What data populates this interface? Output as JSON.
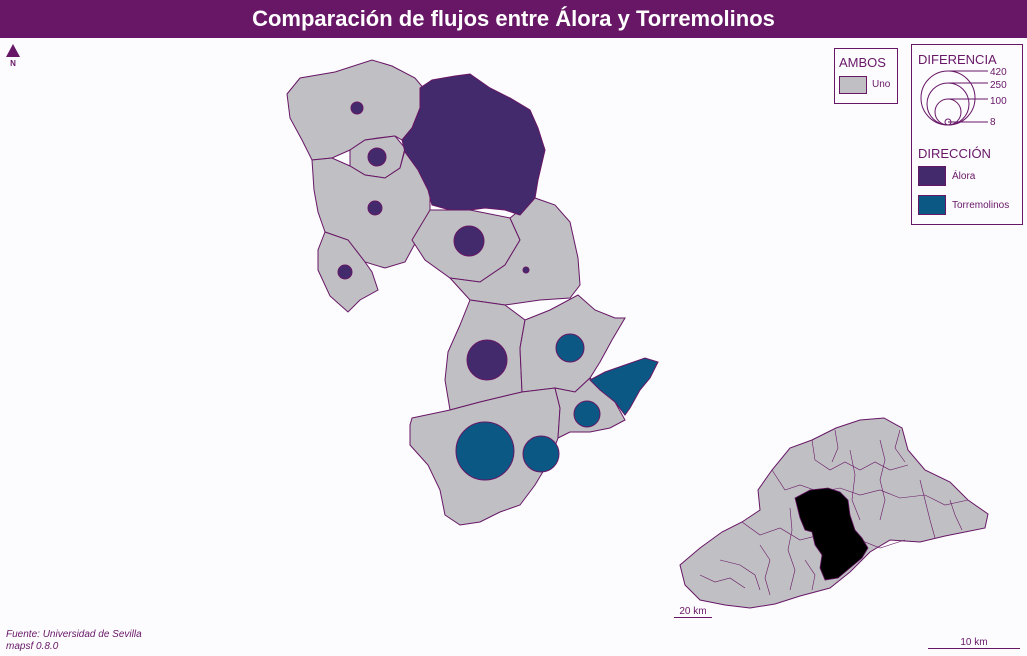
{
  "title": "Comparación de flujos entre Álora y Torremolinos",
  "north_label": "N",
  "legend_ambos": {
    "title": "AMBOS",
    "item_label": "Uno",
    "item_color": "#c0bfc3"
  },
  "legend_diferencia": {
    "title": "DIFERENCIA",
    "values": [
      420,
      250,
      100,
      8
    ],
    "value_labels": [
      "420",
      "250",
      "100",
      "8"
    ]
  },
  "legend_direccion": {
    "title": "DIRECCIÓN",
    "items": [
      {
        "label": "Álora",
        "color": "#422a6c"
      },
      {
        "label": "Torremolinos",
        "color": "#0c5885"
      }
    ]
  },
  "colors": {
    "accent": "#671766",
    "polygon_fill": "#c0bfc3",
    "alora": "#422a6c",
    "torremolinos": "#0c5885",
    "inset_highlight": "#000000"
  },
  "source_lines": [
    "Fuente: Universidad de Sevilla",
    "mapsf 0.8.0"
  ],
  "inset_scale_label": "20 km",
  "main_scale_label": "10 km"
}
